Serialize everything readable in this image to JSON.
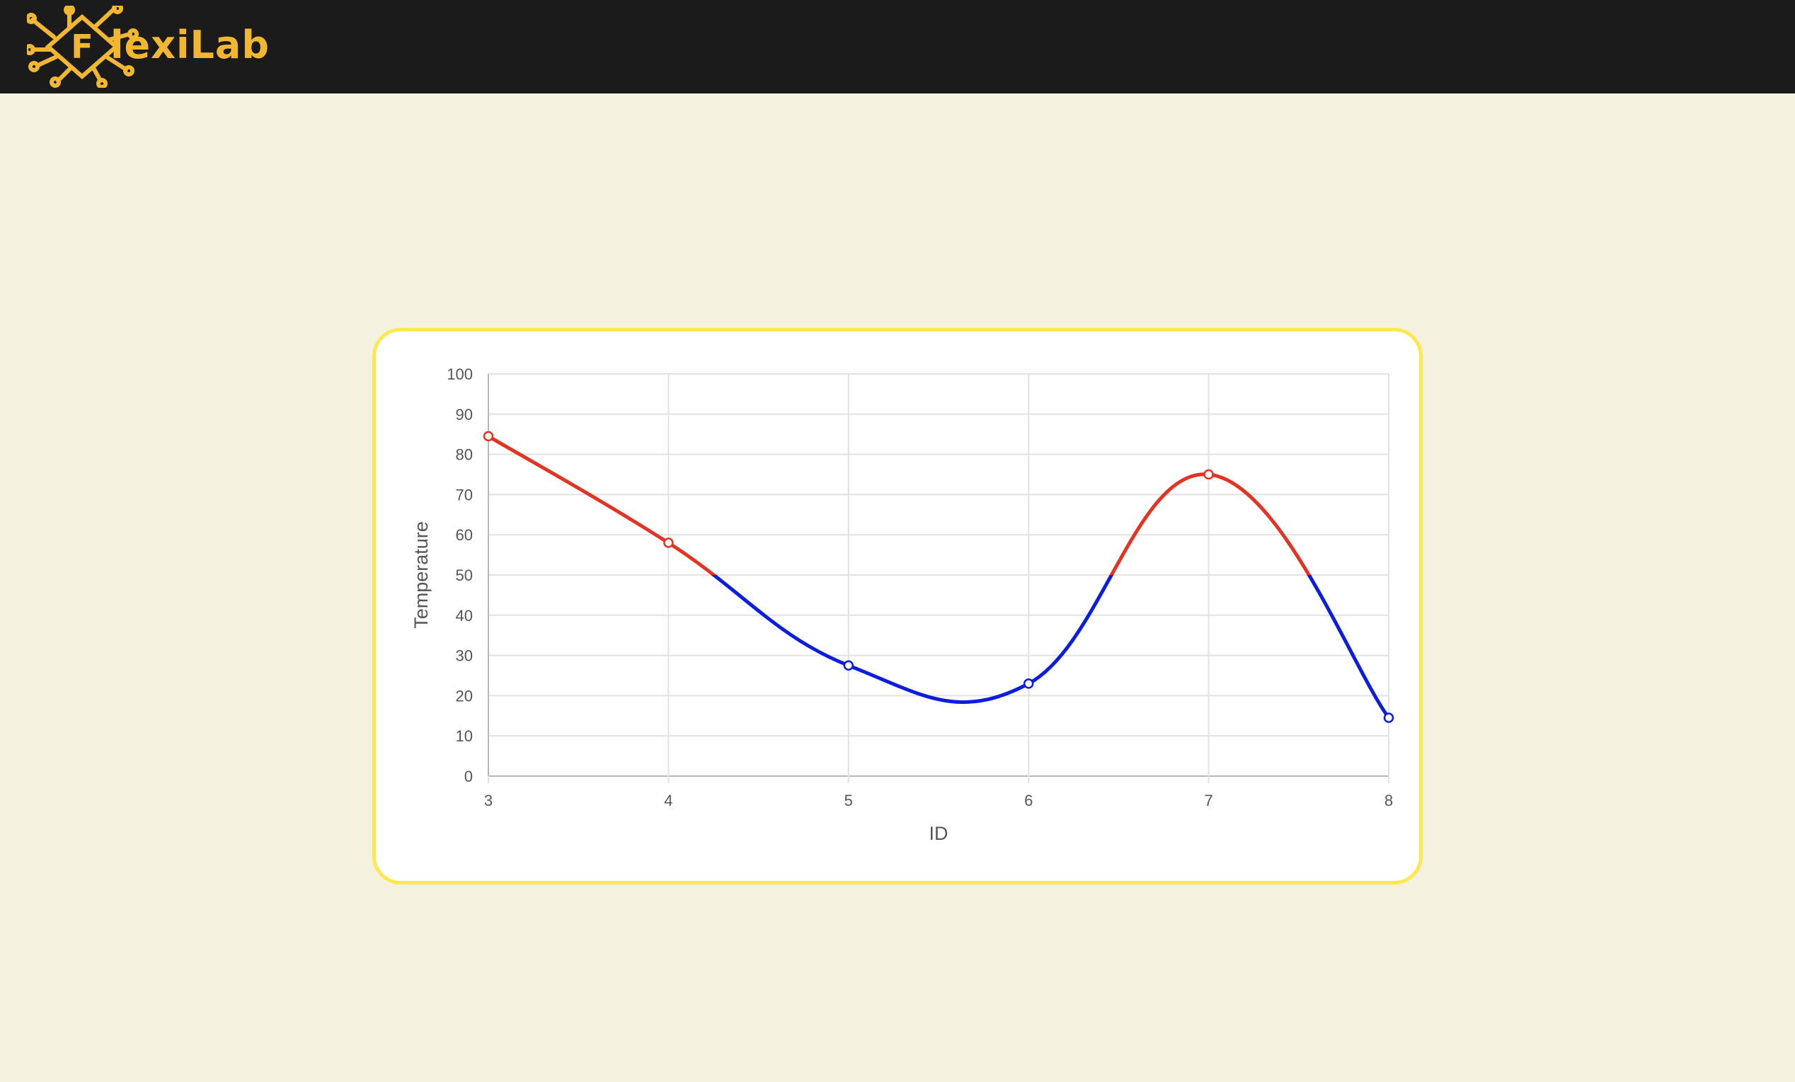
{
  "header": {
    "logo_text": "lexiLab",
    "logo_letter": "F",
    "logo_icon": "circuit-diamond-logo"
  },
  "colors": {
    "header_bg": "#1b1b1b",
    "page_bg": "#f4f1de",
    "card_border": "#fbe94e",
    "logo": "#f1b731",
    "high": "#e43322",
    "low": "#0a1de0",
    "grid": "#e2e2e2"
  },
  "chart_data": {
    "type": "line",
    "x": [
      3,
      4,
      5,
      6,
      7,
      8
    ],
    "series": [
      {
        "values": [
          84.5,
          58,
          27.5,
          23,
          75,
          14.5
        ]
      }
    ],
    "xlabel": "ID",
    "ylabel": "Temperature",
    "ylim": [
      0,
      100
    ],
    "xlim": [
      3,
      8
    ],
    "yticks": [
      0,
      10,
      20,
      30,
      40,
      50,
      60,
      70,
      80,
      90,
      100
    ],
    "xticks": [
      3,
      4,
      5,
      6,
      7,
      8
    ],
    "threshold": 50,
    "above_threshold_color": "#e43322",
    "below_threshold_color": "#0a1de0",
    "smooth": true,
    "grid": true,
    "legend": false
  }
}
